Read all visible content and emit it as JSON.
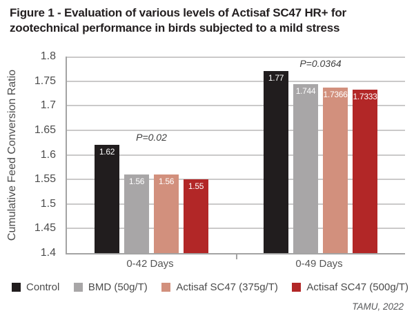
{
  "figure": {
    "title_line1": "Figure 1 - Evaluation of various levels of Actisaf SC47 HR+ for",
    "title_line2": "zootechnical performance in birds subjected to a mild stress",
    "source": "TAMU, 2022"
  },
  "chart_data": {
    "type": "bar",
    "title": "Figure 1 - Evaluation of various levels of Actisaf SC47 HR+ for zootechnical performance in birds subjected to a mild stress",
    "xlabel": "",
    "ylabel": "Cumulative Feed Conversion Ratio",
    "ylim": [
      1.4,
      1.8
    ],
    "ytick_step": 0.05,
    "yticks": [
      "1.8",
      "1.75",
      "1.7",
      "1.65",
      "1.6",
      "1.55",
      "1.5",
      "1.45",
      "1.4"
    ],
    "grid": true,
    "legend_position": "bottom",
    "categories": [
      "0-42 Days",
      "0-49 Days"
    ],
    "series": [
      {
        "name": "Control",
        "color": "#211d1e",
        "values": [
          1.62,
          1.77
        ],
        "labels": [
          "1.62",
          "1.77"
        ]
      },
      {
        "name": "BMD (50g/T)",
        "color": "#a8a6a7",
        "values": [
          1.56,
          1.744
        ],
        "labels": [
          "1.56",
          "1.744"
        ]
      },
      {
        "name": "Actisaf SC47 (375g/T)",
        "color": "#d2907d",
        "values": [
          1.56,
          1.7366
        ],
        "labels": [
          "1.56",
          "1.7366"
        ]
      },
      {
        "name": "Actisaf SC47 (500g/T)",
        "color": "#b22727",
        "values": [
          1.55,
          1.7333
        ],
        "labels": [
          "1.55",
          "1.7333"
        ]
      }
    ],
    "annotations": [
      {
        "text": "P=0.02",
        "category_index": 0
      },
      {
        "text": "P=0.0364",
        "category_index": 1
      }
    ]
  }
}
